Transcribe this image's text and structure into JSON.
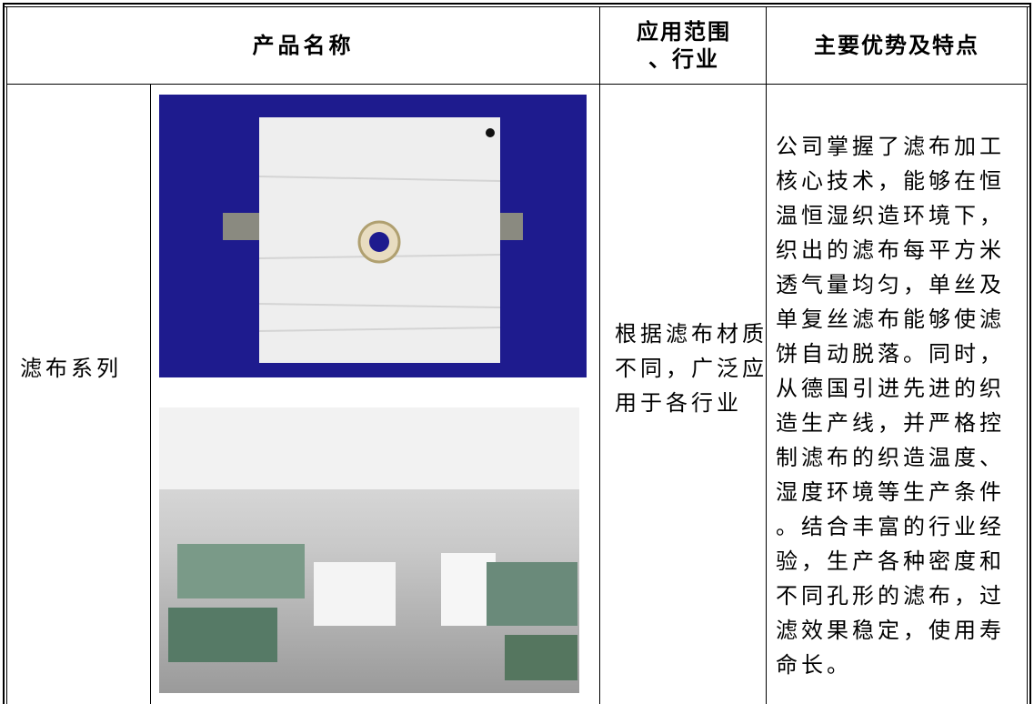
{
  "header": {
    "product_name": "产品名称",
    "application": "应用范围、行业",
    "features": "主要优势及特点"
  },
  "rows": [
    {
      "category": "滤布系列",
      "application": "根据滤布材质不同，广泛应用于各行业",
      "features": "公司掌握了滤布加工核心技术，能够在恒温恒湿织造环境下，织出的滤布每平方米透气量均匀，单丝及单复丝滤布能够使滤饼自动脱落。同时，从德国引进先进的织造生产线，并严格控制滤布的织造温度、湿度环境等生产条件。结合丰富的行业经验，生产各种密度和不同孔形的滤布，过滤效果稳定，使用寿命长。"
    }
  ]
}
